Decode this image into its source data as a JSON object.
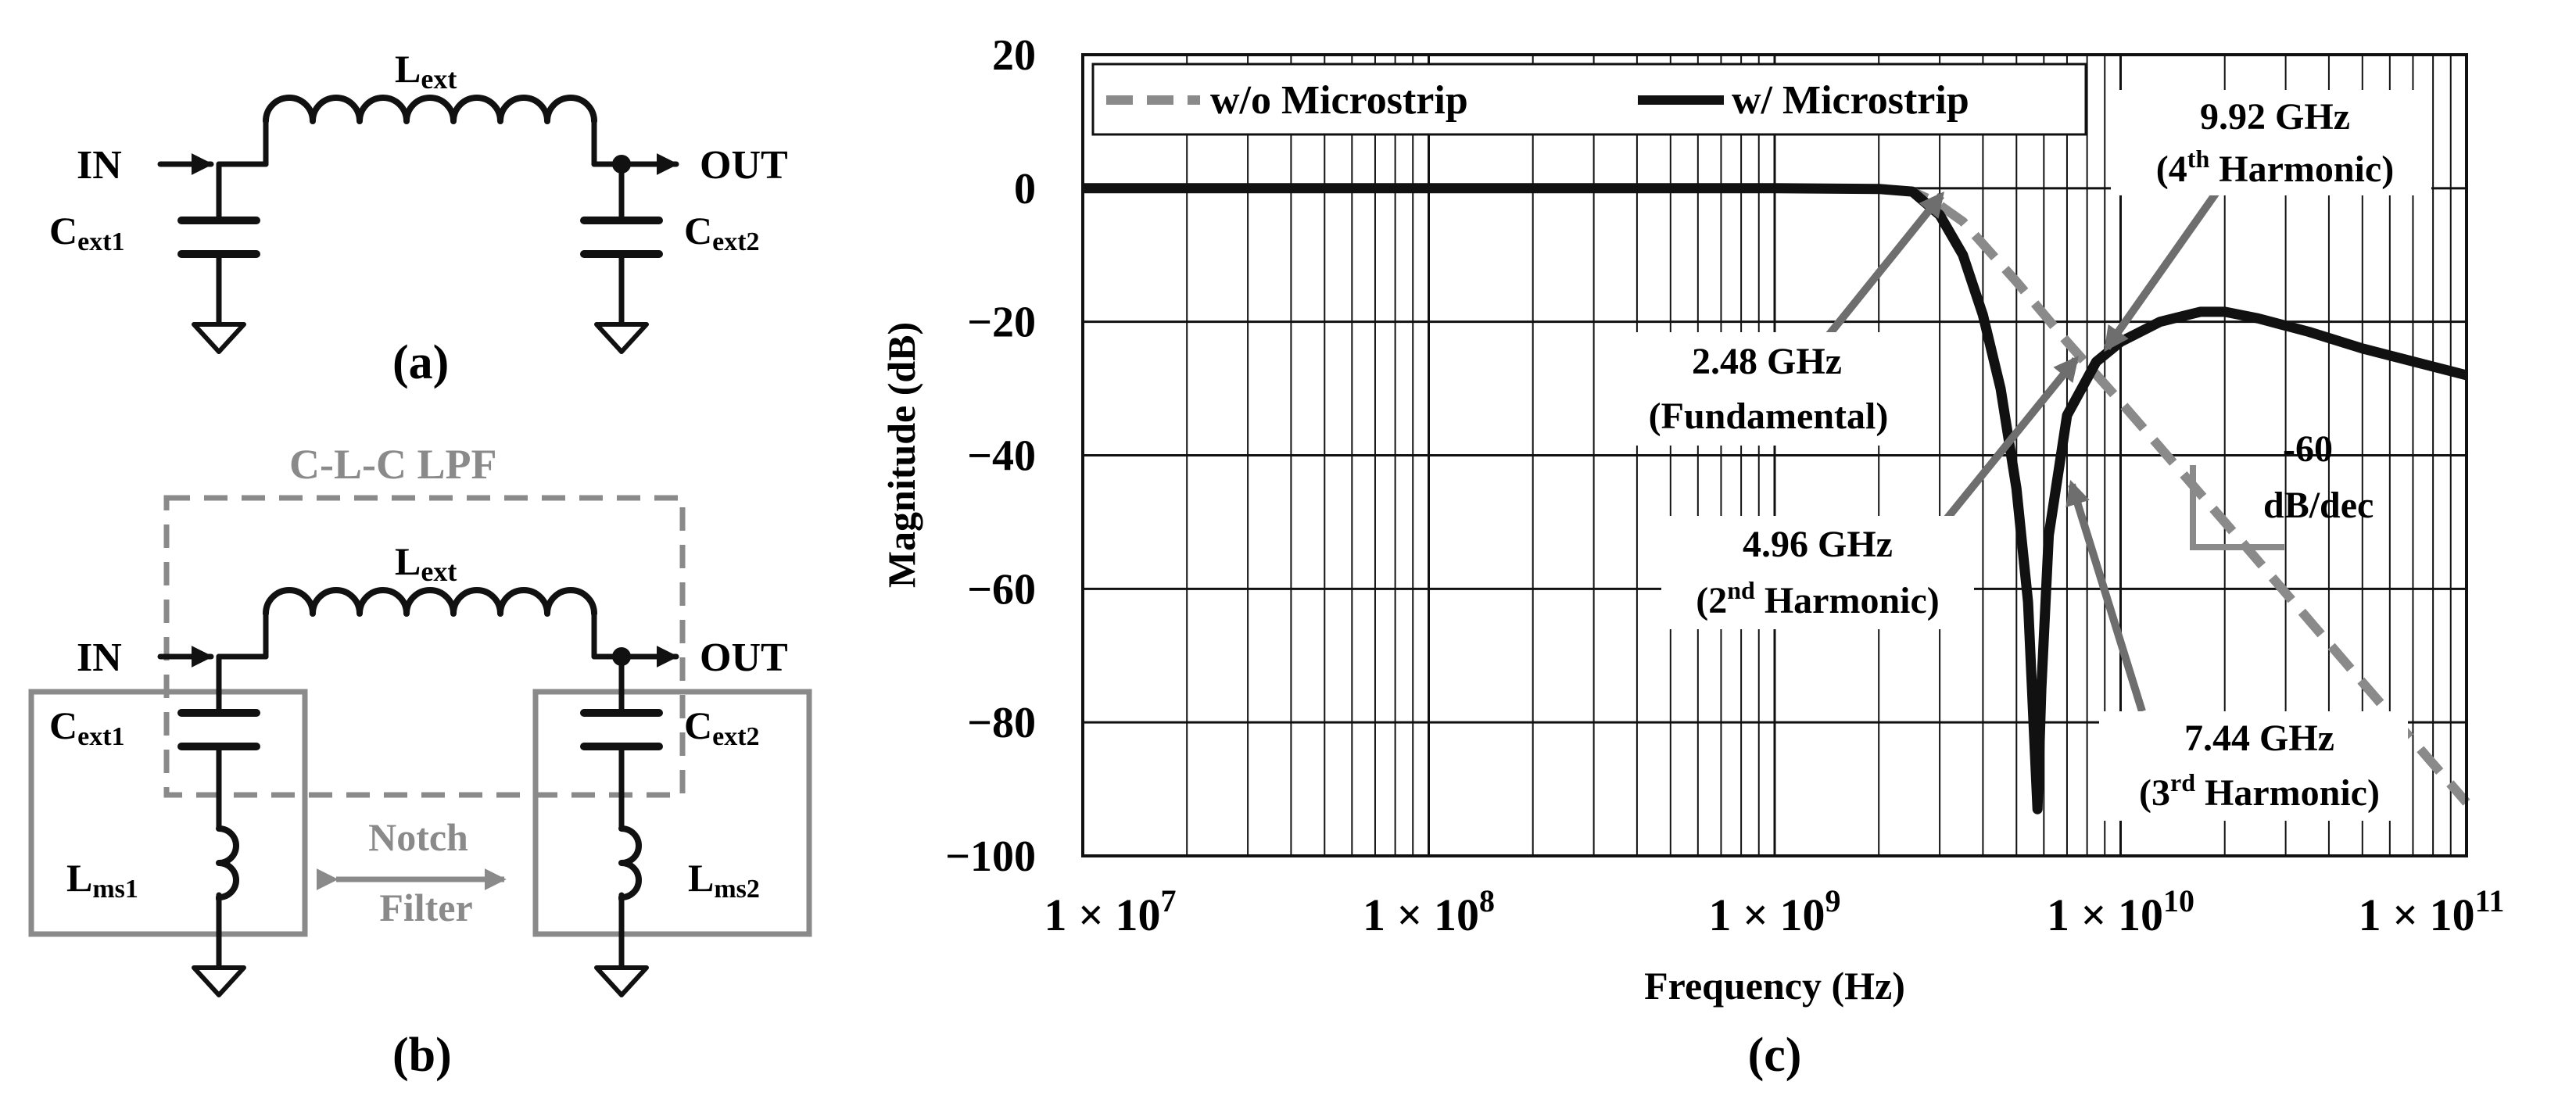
{
  "colors": {
    "black": "#111111",
    "gray": "#8a8a8a",
    "annot_arrow": "#6e6e6e"
  },
  "panel_a": {
    "caption": "(a)",
    "inductor": {
      "main": "L",
      "sub": "ext"
    },
    "in_label": "IN",
    "out_label": "OUT",
    "cap1": {
      "main": "C",
      "sub": "ext1"
    },
    "cap2": {
      "main": "C",
      "sub": "ext2"
    }
  },
  "panel_b": {
    "caption": "(b)",
    "box_title": "C-L-C LPF",
    "inductor": {
      "main": "L",
      "sub": "ext"
    },
    "in_label": "IN",
    "out_label": "OUT",
    "cap1": {
      "main": "C",
      "sub": "ext1"
    },
    "cap2": {
      "main": "C",
      "sub": "ext2"
    },
    "lms1": {
      "main": "L",
      "sub": "ms1"
    },
    "lms2": {
      "main": "L",
      "sub": "ms2"
    },
    "notch_line1": "Notch",
    "notch_line2": "Filter"
  },
  "panel_c": {
    "caption": "(c)",
    "chart_data": {
      "type": "line",
      "xlabel": "Frequency (Hz)",
      "ylabel": "Magnitude (dB)",
      "xscale": "log",
      "xlim": [
        10000000,
        100000000000
      ],
      "ylim": [
        -100,
        20
      ],
      "grid": true,
      "legend_position": "top-left",
      "x_tick_labels": [
        {
          "base": "1 × 10",
          "exp": "7"
        },
        {
          "base": "1 × 10",
          "exp": "8"
        },
        {
          "base": "1 × 10",
          "exp": "9"
        },
        {
          "base": "1 × 10",
          "exp": "10"
        },
        {
          "base": "1 × 10",
          "exp": "11"
        }
      ],
      "y_ticks": [
        20,
        0,
        -20,
        -40,
        -60,
        -80,
        -100
      ],
      "y_tick_labels": [
        "20",
        "0",
        "−20",
        "−40",
        "−60",
        "−80",
        "−100"
      ],
      "series": [
        {
          "name": "w/o Microstrip",
          "style": "dashed",
          "x": [
            10000000,
            100000000,
            1000000000,
            2000000000,
            2500000000,
            2900000000,
            3500000000,
            5000000000,
            7000000000,
            10000000000,
            20000000000,
            50000000000,
            100000000000
          ],
          "y": [
            0,
            0,
            0,
            -0.1,
            -0.5,
            -2,
            -5,
            -14,
            -23,
            -32,
            -50,
            -74,
            -92
          ]
        },
        {
          "name": "w/ Microstrip",
          "style": "solid",
          "x": [
            10000000,
            100000000,
            1000000000,
            2000000000,
            2500000000,
            3000000000,
            3500000000,
            4000000000,
            4500000000,
            5000000000,
            5400000000,
            5600000000,
            5750000000,
            5900000000,
            6200000000,
            7000000000,
            8500000000,
            10000000000,
            13000000000,
            17000000000,
            20000000000,
            25000000000,
            35000000000,
            50000000000,
            100000000000
          ],
          "y": [
            0,
            0,
            0,
            -0.1,
            -0.5,
            -4,
            -10,
            -19,
            -30,
            -45,
            -62,
            -80,
            -93,
            -75,
            -52,
            -34,
            -26,
            -23,
            -20,
            -18.5,
            -18.5,
            -19.5,
            -21.5,
            -24,
            -28
          ]
        }
      ],
      "annotations": [
        {
          "line1": "2.48 GHz",
          "line2": "(Fundamental)"
        },
        {
          "line1": "4.96 GHz",
          "line2_pre": "(2",
          "line2_sup": "nd",
          "line2_post": " Harmonic)"
        },
        {
          "line1": "7.44 GHz",
          "line2_pre": "(3",
          "line2_sup": "rd",
          "line2_post": " Harmonic)"
        },
        {
          "line1": "9.92 GHz",
          "line2_pre": "(4",
          "line2_sup": "th",
          "line2_post": " Harmonic)"
        },
        {
          "line1": "-60",
          "line2": "dB/dec"
        }
      ]
    }
  }
}
